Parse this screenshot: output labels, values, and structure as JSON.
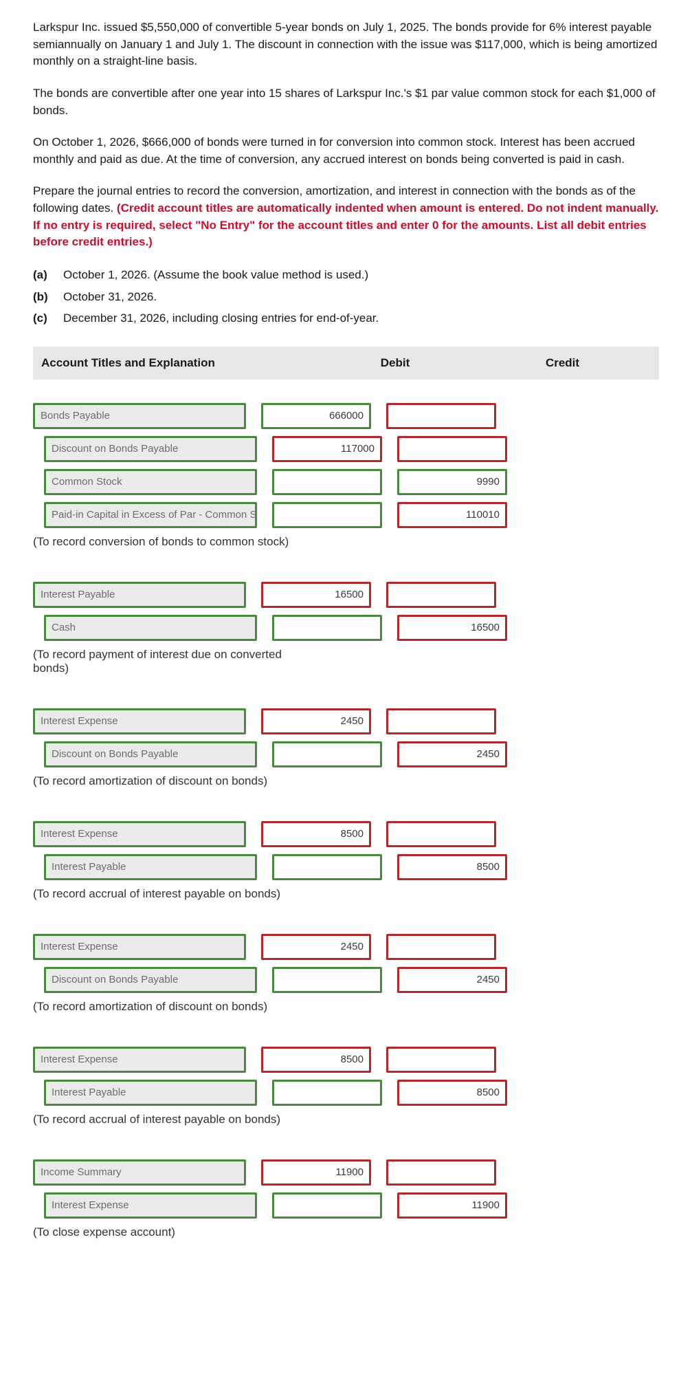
{
  "problem": {
    "p1": "Larkspur Inc. issued $5,550,000 of convertible 5-year bonds on July 1, 2025. The bonds provide for 6% interest payable semiannually on January 1 and July 1. The discount in connection with the issue was $117,000, which is being amortized monthly on a straight-line basis.",
    "p2": "The bonds are convertible after one year into 15 shares of Larkspur Inc.'s $1 par value common stock for each $1,000 of bonds.",
    "p3": "On October 1, 2026, $666,000 of bonds were turned in for conversion into common stock. Interest has been accrued monthly and paid as due. At the time of conversion, any accrued interest on bonds being converted is paid in cash.",
    "p4_lead": "Prepare the journal entries to record the conversion, amortization, and interest in connection with the bonds as of the following dates. ",
    "p4_red": "(Credit account titles are automatically indented when amount is entered. Do not indent manually. If no entry is required, select \"No Entry\" for the account titles and enter 0 for the amounts. List all debit entries before credit entries.)"
  },
  "parts": {
    "a_label": "(a)",
    "a_text": "October 1, 2026. (Assume the book value method is used.)",
    "b_label": "(b)",
    "b_text": "October 31, 2026.",
    "c_label": "(c)",
    "c_text": "December 31, 2026, including closing entries for end-of-year."
  },
  "headers": {
    "title": "Account Titles and Explanation",
    "debit": "Debit",
    "credit": "Credit"
  },
  "rows": [
    {
      "title": "Bonds Payable",
      "indent": false,
      "t_color": "green",
      "debit": "666000",
      "d_color": "green",
      "credit": "",
      "c_color": "red"
    },
    {
      "title": "Discount on Bonds Payable",
      "indent": true,
      "t_color": "green",
      "debit": "117000",
      "d_color": "red",
      "credit": "",
      "c_color": "red"
    },
    {
      "title": "Common Stock",
      "indent": true,
      "t_color": "green",
      "debit": "",
      "d_color": "green",
      "credit": "9990",
      "c_color": "green"
    },
    {
      "title": "Paid-in Capital in Excess of Par - Common Stock",
      "indent": true,
      "t_color": "green",
      "debit": "",
      "d_color": "green",
      "credit": "110010",
      "c_color": "red"
    }
  ],
  "cap1": "(To record conversion of bonds to common stock)",
  "rows2": [
    {
      "title": "Interest Payable",
      "indent": false,
      "t_color": "green",
      "debit": "16500",
      "d_color": "red",
      "credit": "",
      "c_color": "red"
    },
    {
      "title": "Cash",
      "indent": true,
      "t_color": "green",
      "debit": "",
      "d_color": "green",
      "credit": "16500",
      "c_color": "red"
    }
  ],
  "cap2": "(To record payment of interest due on converted bonds)",
  "rows3": [
    {
      "title": "Interest Expense",
      "indent": false,
      "t_color": "green",
      "debit": "2450",
      "d_color": "red",
      "credit": "",
      "c_color": "red"
    },
    {
      "title": "Discount on Bonds Payable",
      "indent": true,
      "t_color": "green",
      "debit": "",
      "d_color": "green",
      "credit": "2450",
      "c_color": "red"
    }
  ],
  "cap3": "(To record amortization of discount on bonds)",
  "rows4": [
    {
      "title": "Interest Expense",
      "indent": false,
      "t_color": "green",
      "debit": "8500",
      "d_color": "red",
      "credit": "",
      "c_color": "red"
    },
    {
      "title": "Interest Payable",
      "indent": true,
      "t_color": "green",
      "debit": "",
      "d_color": "green",
      "credit": "8500",
      "c_color": "red"
    }
  ],
  "cap4": "(To record accrual of interest payable on bonds)",
  "rows5": [
    {
      "title": "Interest Expense",
      "indent": false,
      "t_color": "green",
      "debit": "2450",
      "d_color": "red",
      "credit": "",
      "c_color": "red"
    },
    {
      "title": "Discount on Bonds Payable",
      "indent": true,
      "t_color": "green",
      "debit": "",
      "d_color": "green",
      "credit": "2450",
      "c_color": "red"
    }
  ],
  "cap5": "(To record amortization of discount on bonds)",
  "rows6": [
    {
      "title": "Interest Expense",
      "indent": false,
      "t_color": "green",
      "debit": "8500",
      "d_color": "red",
      "credit": "",
      "c_color": "red"
    },
    {
      "title": "Interest Payable",
      "indent": true,
      "t_color": "green",
      "debit": "",
      "d_color": "green",
      "credit": "8500",
      "c_color": "red"
    }
  ],
  "cap6": "(To record accrual of interest payable on bonds)",
  "rows7": [
    {
      "title": "Income Summary",
      "indent": false,
      "t_color": "green",
      "debit": "11900",
      "d_color": "red",
      "credit": "",
      "c_color": "red"
    },
    {
      "title": "Interest Expense",
      "indent": true,
      "t_color": "green",
      "debit": "",
      "d_color": "green",
      "credit": "11900",
      "c_color": "red"
    }
  ],
  "cap7": "(To close expense account)"
}
